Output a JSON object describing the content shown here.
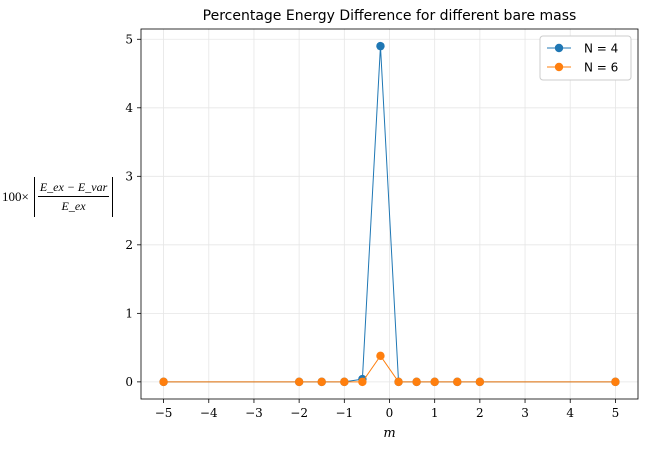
{
  "chart_data": {
    "type": "line",
    "title": "Percentage Energy Difference for different bare mass",
    "xlabel": "m",
    "ylabel": {
      "prefix": "100×",
      "numerator": "E_ex − E_var",
      "denominator": "E_ex"
    },
    "xlim": [
      -5.5,
      5.5
    ],
    "ylim": [
      -0.25,
      5.15
    ],
    "xticks": [
      -5,
      -4,
      -3,
      -2,
      -1,
      0,
      1,
      2,
      3,
      4,
      5
    ],
    "xtick_labels": [
      "−5",
      "−4",
      "−3",
      "−2",
      "−1",
      "0",
      "1",
      "2",
      "3",
      "4",
      "5"
    ],
    "yticks": [
      0,
      1,
      2,
      3,
      4,
      5
    ],
    "ytick_labels": [
      "0",
      "1",
      "2",
      "3",
      "4",
      "5"
    ],
    "grid": true,
    "legend_position": "top-right",
    "series": [
      {
        "name": "N = 4",
        "color": "#1f77b4",
        "x": [
          -5,
          -2,
          -1.5,
          -1,
          -0.6,
          -0.2,
          0.2,
          0.6,
          1,
          1.5,
          2,
          5
        ],
        "y": [
          0,
          0,
          0,
          0,
          0.04,
          4.9,
          0,
          0,
          0,
          0,
          0,
          0
        ]
      },
      {
        "name": "N = 6",
        "color": "#ff7f0e",
        "x": [
          -5,
          -2,
          -1.5,
          -1,
          -0.6,
          -0.2,
          0.2,
          0.6,
          1,
          1.5,
          2,
          5
        ],
        "y": [
          0,
          0,
          0,
          0,
          0,
          0.38,
          0,
          0,
          0,
          0,
          0,
          0
        ]
      }
    ]
  }
}
